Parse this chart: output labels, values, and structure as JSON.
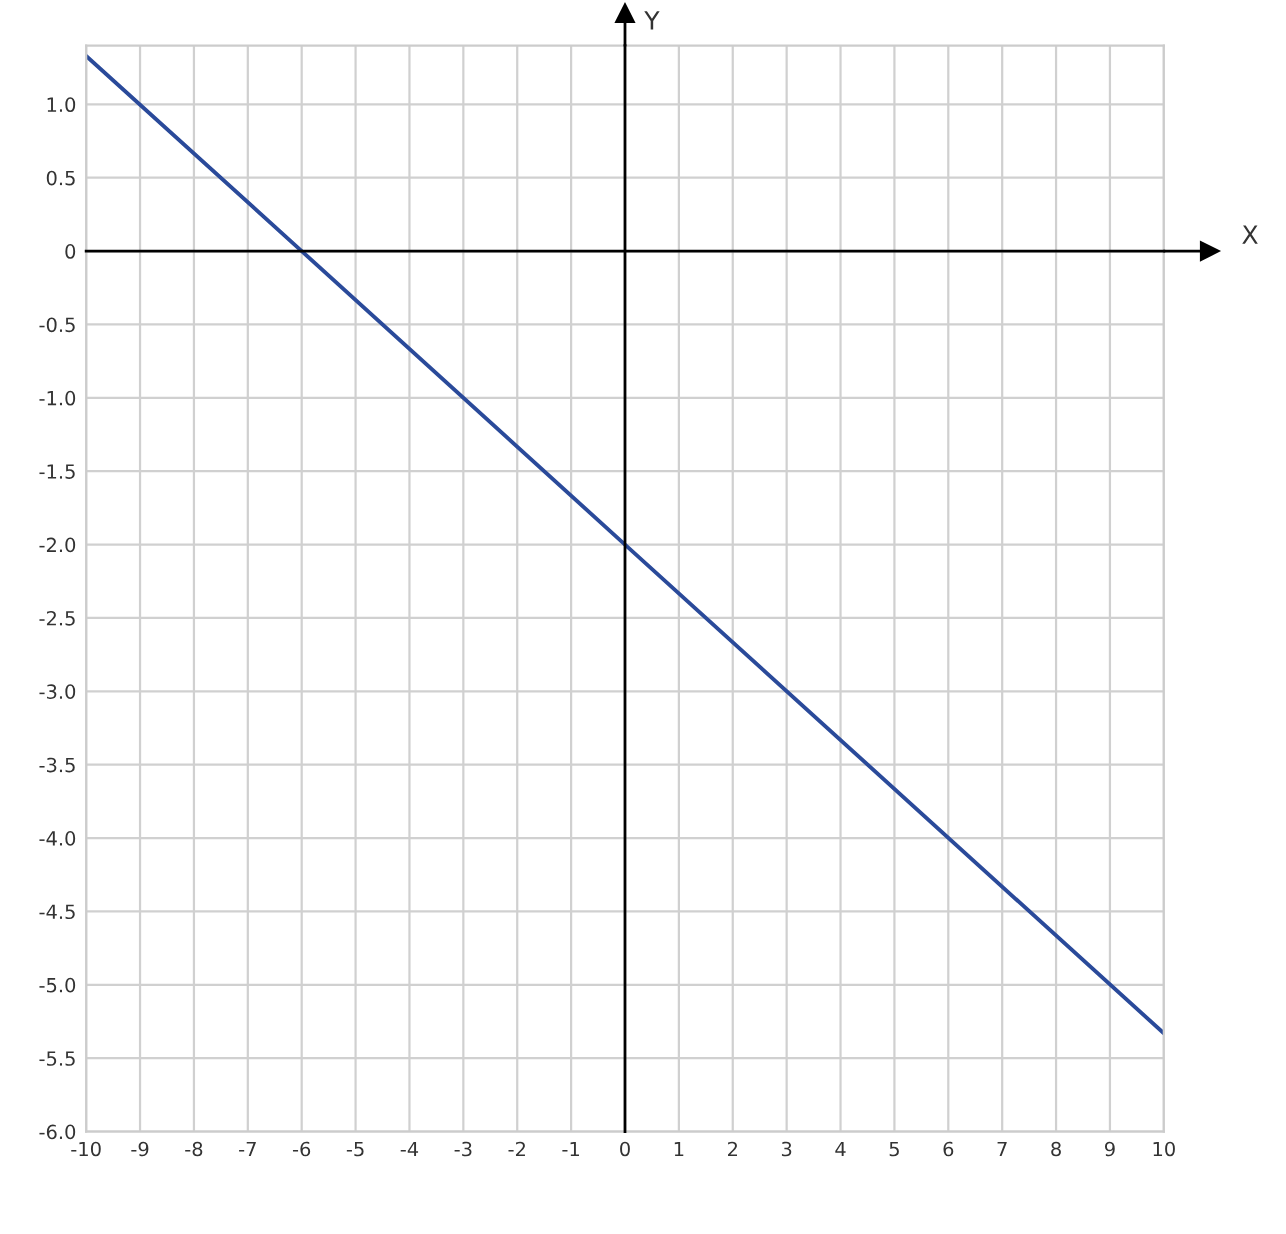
{
  "chart_data": {
    "type": "line",
    "xlabel": "X",
    "ylabel": "Y",
    "x": [
      -10,
      -6,
      0,
      10
    ],
    "series": [
      {
        "color": "#2a4a9a",
        "values": [
          1.33,
          0,
          -2,
          -5.33
        ]
      }
    ],
    "xlim": [
      -10,
      10
    ],
    "xticks": [
      -10,
      -9,
      -8,
      -7,
      -6,
      -5,
      -4,
      -3,
      -2,
      -1,
      0,
      1,
      2,
      3,
      4,
      5,
      6,
      7,
      8,
      9,
      10
    ],
    "ylim": [
      -6,
      1.4
    ],
    "yticks": [
      {
        "value": 1,
        "label": "1.0"
      },
      0.5,
      0,
      -0.5,
      {
        "value": -1,
        "label": "-1.0"
      },
      -1.5,
      {
        "value": -2,
        "label": "-2.0"
      },
      -2.5,
      {
        "value": -3,
        "label": "-3.0"
      },
      -3.5,
      {
        "value": -4,
        "label": "-4.0"
      },
      -4.5,
      {
        "value": -5,
        "label": "-5.0"
      },
      -5.5,
      {
        "value": -6,
        "label": "-6.0"
      }
    ],
    "grid": true,
    "marker": "none",
    "line_style": "solid",
    "legend": false
  }
}
